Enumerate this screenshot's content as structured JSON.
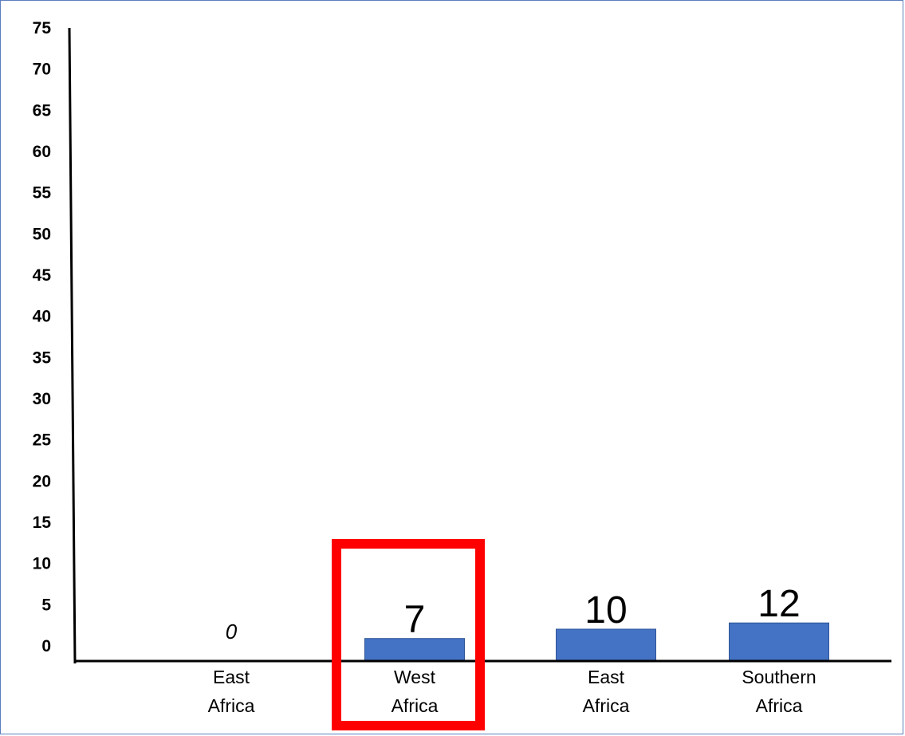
{
  "chart_data": {
    "type": "bar",
    "categories": [
      [
        "East",
        "Africa"
      ],
      [
        "West",
        "Africa"
      ],
      [
        "East",
        "Africa"
      ],
      [
        "Southern",
        "Africa"
      ]
    ],
    "values": [
      0,
      7,
      10,
      12
    ],
    "data_labels": [
      "0",
      "7",
      "10",
      "12"
    ],
    "yticks": [
      "75",
      "70",
      "65",
      "60",
      "55",
      "50",
      "45",
      "40",
      "35",
      "30",
      "25",
      "20",
      "15",
      "10",
      "5",
      "0"
    ],
    "title": "",
    "xlabel": "",
    "ylabel": "",
    "grid": false,
    "legend": "none",
    "highlighted_category_index": 1,
    "colors": {
      "bar": "#4472c4",
      "bar_edge": "#2f5597",
      "axis": "#000000",
      "highlight": "#ff0000",
      "frame": "#5b7fbf"
    }
  }
}
